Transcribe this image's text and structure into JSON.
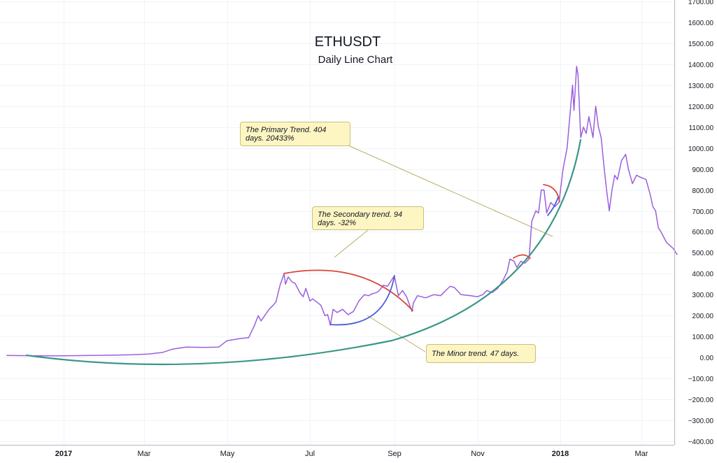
{
  "chart_data": {
    "type": "line",
    "title": "ETHUSDT",
    "subtitle": "Daily Line Chart",
    "ylim": [
      -400,
      1700
    ],
    "y_ticks": [
      "1700.00",
      "1600.00",
      "1500.00",
      "1400.00",
      "1300.00",
      "1200.00",
      "1100.00",
      "1000.00",
      "900.00",
      "800.00",
      "700.00",
      "600.00",
      "500.00",
      "400.00",
      "300.00",
      "200.00",
      "100.00",
      "0.00",
      "−100.00",
      "−200.00",
      "−300.00",
      "−400.00"
    ],
    "x_ticks": [
      {
        "label": "2017",
        "bold": true
      },
      {
        "label": "Mar",
        "bold": false
      },
      {
        "label": "May",
        "bold": false
      },
      {
        "label": "Jul",
        "bold": false
      },
      {
        "label": "Sep",
        "bold": false
      },
      {
        "label": "Nov",
        "bold": false
      },
      {
        "label": "2018",
        "bold": true
      },
      {
        "label": "Mar",
        "bold": false
      }
    ],
    "grid": true,
    "colors": {
      "price": "#9a5fde",
      "primary": "#3d9687",
      "secondary": "#d9453b",
      "minor": "#4a61d6"
    },
    "series": [
      {
        "values": [
          [
            "2016-11-20",
            10
          ],
          [
            "2016-12-15",
            8
          ],
          [
            "2017-01-01",
            8
          ],
          [
            "2017-01-20",
            10
          ],
          [
            "2017-02-05",
            11
          ],
          [
            "2017-02-20",
            13
          ],
          [
            "2017-03-05",
            17
          ],
          [
            "2017-03-15",
            25
          ],
          [
            "2017-03-22",
            40
          ],
          [
            "2017-04-01",
            50
          ],
          [
            "2017-04-15",
            48
          ],
          [
            "2017-04-25",
            50
          ],
          [
            "2017-05-01",
            80
          ],
          [
            "2017-05-10",
            90
          ],
          [
            "2017-05-17",
            95
          ],
          [
            "2017-05-21",
            150
          ],
          [
            "2017-05-24",
            200
          ],
          [
            "2017-05-26",
            175
          ],
          [
            "2017-06-01",
            230
          ],
          [
            "2017-06-04",
            250
          ],
          [
            "2017-06-06",
            265
          ],
          [
            "2017-06-09",
            345
          ],
          [
            "2017-06-12",
            400
          ],
          [
            "2017-06-13",
            350
          ],
          [
            "2017-06-15",
            385
          ],
          [
            "2017-06-18",
            360
          ],
          [
            "2017-06-20",
            355
          ],
          [
            "2017-06-24",
            305
          ],
          [
            "2017-06-26",
            290
          ],
          [
            "2017-06-28",
            330
          ],
          [
            "2017-07-01",
            270
          ],
          [
            "2017-07-03",
            280
          ],
          [
            "2017-07-06",
            265
          ],
          [
            "2017-07-09",
            250
          ],
          [
            "2017-07-12",
            200
          ],
          [
            "2017-07-14",
            205
          ],
          [
            "2017-07-16",
            155
          ],
          [
            "2017-07-18",
            230
          ],
          [
            "2017-07-21",
            215
          ],
          [
            "2017-07-25",
            230
          ],
          [
            "2017-07-29",
            205
          ],
          [
            "2017-08-02",
            220
          ],
          [
            "2017-08-06",
            270
          ],
          [
            "2017-08-10",
            300
          ],
          [
            "2017-08-13",
            295
          ],
          [
            "2017-08-16",
            305
          ],
          [
            "2017-08-19",
            310
          ],
          [
            "2017-08-21",
            320
          ],
          [
            "2017-08-24",
            345
          ],
          [
            "2017-08-27",
            340
          ],
          [
            "2017-09-01",
            390
          ],
          [
            "2017-09-04",
            295
          ],
          [
            "2017-09-07",
            320
          ],
          [
            "2017-09-10",
            290
          ],
          [
            "2017-09-14",
            220
          ],
          [
            "2017-09-15",
            260
          ],
          [
            "2017-09-18",
            295
          ],
          [
            "2017-09-24",
            285
          ],
          [
            "2017-09-30",
            300
          ],
          [
            "2017-10-05",
            295
          ],
          [
            "2017-10-12",
            340
          ],
          [
            "2017-10-15",
            335
          ],
          [
            "2017-10-20",
            300
          ],
          [
            "2017-10-27",
            295
          ],
          [
            "2017-11-01",
            290
          ],
          [
            "2017-11-05",
            300
          ],
          [
            "2017-11-08",
            320
          ],
          [
            "2017-11-12",
            310
          ],
          [
            "2017-11-16",
            330
          ],
          [
            "2017-11-20",
            370
          ],
          [
            "2017-11-23",
            410
          ],
          [
            "2017-11-25",
            470
          ],
          [
            "2017-11-28",
            460
          ],
          [
            "2017-11-30",
            430
          ],
          [
            "2017-12-03",
            460
          ],
          [
            "2017-12-06",
            450
          ],
          [
            "2017-12-09",
            470
          ],
          [
            "2017-12-11",
            650
          ],
          [
            "2017-12-14",
            700
          ],
          [
            "2017-12-16",
            690
          ],
          [
            "2017-12-18",
            800
          ],
          [
            "2017-12-20",
            800
          ],
          [
            "2017-12-22",
            690
          ],
          [
            "2017-12-25",
            740
          ],
          [
            "2017-12-28",
            720
          ],
          [
            "2017-12-31",
            740
          ],
          [
            "2018-01-03",
            900
          ],
          [
            "2018-01-06",
            1000
          ],
          [
            "2018-01-08",
            1150
          ],
          [
            "2018-01-10",
            1300
          ],
          [
            "2018-01-11",
            1180
          ],
          [
            "2018-01-13",
            1390
          ],
          [
            "2018-01-14",
            1350
          ],
          [
            "2018-01-16",
            1050
          ],
          [
            "2018-01-18",
            1100
          ],
          [
            "2018-01-20",
            1070
          ],
          [
            "2018-01-22",
            1150
          ],
          [
            "2018-01-25",
            1050
          ],
          [
            "2018-01-27",
            1200
          ],
          [
            "2018-01-29",
            1100
          ],
          [
            "2018-01-31",
            1050
          ],
          [
            "2018-02-02",
            920
          ],
          [
            "2018-02-04",
            800
          ],
          [
            "2018-02-06",
            700
          ],
          [
            "2018-02-08",
            800
          ],
          [
            "2018-02-10",
            870
          ],
          [
            "2018-02-12",
            850
          ],
          [
            "2018-02-15",
            940
          ],
          [
            "2018-02-18",
            970
          ],
          [
            "2018-02-20",
            900
          ],
          [
            "2018-02-23",
            830
          ],
          [
            "2018-02-26",
            870
          ],
          [
            "2018-03-01",
            860
          ],
          [
            "2018-03-05",
            850
          ],
          [
            "2018-03-08",
            780
          ],
          [
            "2018-03-10",
            720
          ],
          [
            "2018-03-12",
            700
          ],
          [
            "2018-03-14",
            620
          ],
          [
            "2018-03-16",
            600
          ],
          [
            "2018-03-20",
            550
          ],
          [
            "2018-03-25",
            520
          ],
          [
            "2018-03-28",
            490
          ]
        ]
      }
    ],
    "annotations": [
      {
        "text": "The Primary Trend. 404 days. 20433%"
      },
      {
        "text": "The Secondary trend. 94 days. -32%"
      },
      {
        "text": "The Minor trend. 47 days."
      }
    ]
  }
}
